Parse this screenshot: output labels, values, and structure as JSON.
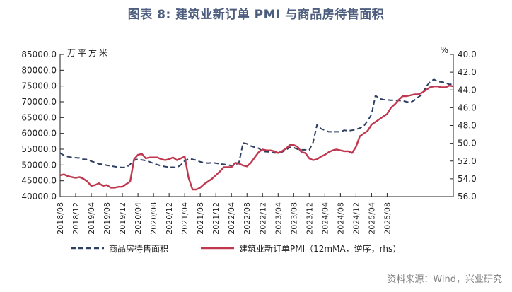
{
  "figure_title": "图表 8:    建筑业新订单 PMI 与商品房待售面积",
  "source_note": "资料来源：Wind，兴业研究",
  "colors": {
    "title": "#4d5d7d",
    "series_area": "#2f3f63",
    "series_pmi": "#c0384f",
    "axis": "#222222",
    "source": "#7f7f7f"
  },
  "chart_data": {
    "type": "line",
    "title": "建筑业新订单 PMI 与商品房待售面积",
    "left_axis": {
      "unit": "万平方米",
      "range": [
        40000,
        85000
      ],
      "ticks": [
        "85000.0",
        "80000.0",
        "75000.0",
        "70000.0",
        "65000.0",
        "60000.0",
        "55000.0",
        "50000.0",
        "45000.0",
        "40000.0"
      ]
    },
    "right_axis": {
      "unit": "%",
      "range": [
        40.0,
        56.0
      ],
      "inverted": true,
      "ticks": [
        "40.0",
        "42.0",
        "44.0",
        "46.0",
        "48.0",
        "50.0",
        "52.0",
        "54.0",
        "56.0"
      ]
    },
    "x_tick_labels": [
      "2018/08",
      "2018/12",
      "2019/04",
      "2019/08",
      "2019/12",
      "2020/04",
      "2020/08",
      "2020/12",
      "2021/04",
      "2021/08",
      "2021/12",
      "2022/04",
      "2022/08",
      "2022/12",
      "2023/04",
      "2023/08",
      "2023/12",
      "2024/04",
      "2024/08",
      "2024/12",
      "2025/04",
      "2025/08"
    ],
    "x_start": "2018/08",
    "x_end": "2025/08",
    "grid": false,
    "legend_position": "bottom",
    "series": [
      {
        "name": "商品房待售面积",
        "axis": "left",
        "style": "dashed",
        "values": [
          53800,
          53000,
          52600,
          52400,
          52300,
          52200,
          51800,
          51700,
          51200,
          50800,
          50300,
          50200,
          49900,
          49700,
          49500,
          49300,
          49200,
          49300,
          50200,
          51500,
          51800,
          51600,
          51400,
          51000,
          50500,
          50100,
          49700,
          49500,
          49300,
          49300,
          49200,
          50000,
          51300,
          51900,
          51800,
          51500,
          51000,
          50700,
          50600,
          50700,
          50600,
          50300,
          50200,
          50000,
          49800,
          49900,
          51000,
          57000,
          56700,
          56000,
          55600,
          55300,
          54300,
          54200,
          54100,
          53800,
          53900,
          54100,
          54700,
          55600,
          55500,
          55000,
          54800,
          54800,
          54700,
          57200,
          62800,
          61500,
          61000,
          60500,
          60500,
          60500,
          60500,
          61000,
          60800,
          61000,
          61200,
          61700,
          62300,
          64000,
          66000,
          72000,
          71000,
          70700,
          70600,
          70500,
          70500,
          70400,
          70300,
          70000,
          69800,
          70500,
          71500,
          72300,
          74800,
          76300,
          77100,
          76400,
          76300,
          76000,
          75500,
          75600
        ]
      },
      {
        "name": "建筑业新订单PMI（12mMA，逆序，rhs）",
        "axis": "right",
        "style": "solid",
        "values": [
          53.6,
          53.5,
          53.7,
          53.8,
          53.9,
          53.8,
          54.0,
          54.3,
          54.8,
          54.7,
          54.5,
          54.8,
          54.7,
          55.0,
          55.0,
          54.9,
          54.9,
          54.6,
          54.3,
          51.8,
          51.3,
          51.2,
          51.7,
          51.6,
          51.6,
          51.6,
          51.8,
          51.9,
          51.8,
          51.6,
          51.9,
          51.7,
          51.5,
          53.9,
          55.2,
          55.2,
          55.0,
          54.6,
          54.3,
          54.0,
          53.6,
          53.2,
          52.7,
          52.7,
          52.7,
          52.2,
          52.3,
          52.5,
          52.6,
          52.2,
          51.6,
          51.0,
          50.7,
          50.8,
          50.8,
          50.9,
          51.1,
          50.9,
          50.6,
          50.2,
          50.2,
          50.4,
          51.0,
          51.1,
          51.7,
          51.9,
          51.8,
          51.5,
          51.3,
          51.0,
          50.8,
          50.7,
          50.8,
          50.9,
          50.9,
          51.1,
          50.4,
          49.2,
          48.9,
          48.6,
          47.9,
          47.6,
          47.3,
          47.0,
          46.7,
          46.0,
          45.6,
          45.1,
          44.7,
          44.7,
          44.6,
          44.5,
          44.5,
          44.3,
          44.0,
          43.7,
          43.6,
          43.6,
          43.7,
          43.7,
          43.5,
          43.6
        ]
      }
    ]
  },
  "legend": [
    {
      "label": "商品房待售面积"
    },
    {
      "label": "建筑业新订单PMI（12mMA，逆序，rhs）"
    }
  ]
}
